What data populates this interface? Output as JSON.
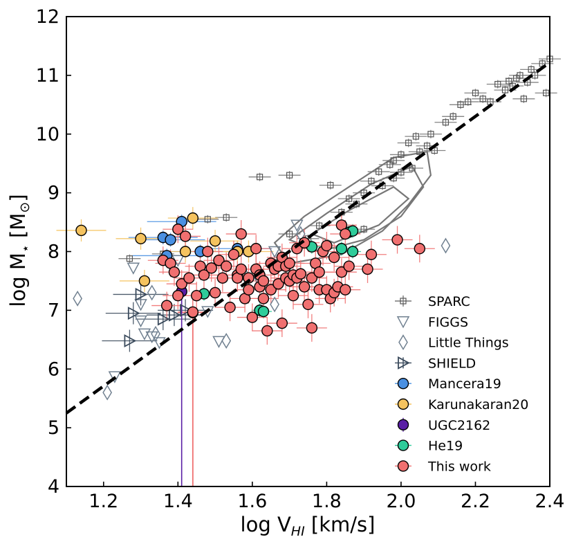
{
  "chart_data": {
    "type": "scatter",
    "title": "",
    "xlabel": "log V",
    "xlabel_sub": "HI",
    "xlabel_unit": " [km/s]",
    "ylabel": "log M",
    "ylabel_sub": "⋆",
    "ylabel_unit": " [M",
    "ylabel_sym": "⊙",
    "ylabel_end": "]",
    "xlim": [
      1.1,
      2.4
    ],
    "ylim": [
      4,
      12
    ],
    "xticks": [
      1.2,
      1.4,
      1.6,
      1.8,
      2.0,
      2.2,
      2.4
    ],
    "xtick_labels": [
      "1.2",
      "1.4",
      "1.6",
      "1.8",
      "2.0",
      "2.2",
      "2.4"
    ],
    "yticks": [
      4,
      5,
      6,
      7,
      8,
      9,
      10,
      11,
      12
    ],
    "ytick_labels": [
      "4",
      "5",
      "6",
      "7",
      "8",
      "9",
      "10",
      "11",
      "12"
    ],
    "fit_line": {
      "x": [
        1.1,
        2.4
      ],
      "y": [
        5.25,
        11.22
      ],
      "style": "dashed",
      "color": "#000000"
    },
    "legend_position": "lower-right",
    "series": [
      {
        "name": "SPARC",
        "marker": "square",
        "color": "#555555",
        "points": [
          [
            1.27,
            7.88
          ],
          [
            1.36,
            7.96
          ],
          [
            1.48,
            8.55
          ],
          [
            1.53,
            8.58
          ],
          [
            1.62,
            9.27
          ],
          [
            1.7,
            9.3
          ],
          [
            1.7,
            8.3
          ],
          [
            1.75,
            8.22
          ],
          [
            1.78,
            8.44
          ],
          [
            1.81,
            9.13
          ],
          [
            1.84,
            8.67
          ],
          [
            1.86,
            8.9
          ],
          [
            1.88,
            8.81
          ],
          [
            1.9,
            9.0
          ],
          [
            1.9,
            8.38
          ],
          [
            1.92,
            9.2
          ],
          [
            1.94,
            9.36
          ],
          [
            1.95,
            9.12
          ],
          [
            1.97,
            9.48
          ],
          [
            1.98,
            9.25
          ],
          [
            1.98,
            9.55
          ],
          [
            2.0,
            9.65
          ],
          [
            2.0,
            9.35
          ],
          [
            2.02,
            9.85
          ],
          [
            2.03,
            9.42
          ],
          [
            2.04,
            9.96
          ],
          [
            2.05,
            9.7
          ],
          [
            2.07,
            9.8
          ],
          [
            2.08,
            10.0
          ],
          [
            2.09,
            9.72
          ],
          [
            2.12,
            10.2
          ],
          [
            2.14,
            10.3
          ],
          [
            2.16,
            10.5
          ],
          [
            2.18,
            10.55
          ],
          [
            2.2,
            10.7
          ],
          [
            2.22,
            10.6
          ],
          [
            2.24,
            10.55
          ],
          [
            2.26,
            10.85
          ],
          [
            2.28,
            10.75
          ],
          [
            2.29,
            10.9
          ],
          [
            2.3,
            10.82
          ],
          [
            2.31,
            10.95
          ],
          [
            2.32,
            11.0
          ],
          [
            2.33,
            10.6
          ],
          [
            2.34,
            10.88
          ],
          [
            2.35,
            11.1
          ],
          [
            2.36,
            11.0
          ],
          [
            2.38,
            11.2
          ],
          [
            2.39,
            10.7
          ],
          [
            2.4,
            11.28
          ]
        ]
      },
      {
        "name": "FIGGS",
        "marker": "triangle-down",
        "color": "#708090",
        "points": [
          [
            1.23,
            5.87
          ],
          [
            1.28,
            7.72
          ],
          [
            1.3,
            6.82
          ],
          [
            1.31,
            6.6
          ],
          [
            1.33,
            6.55
          ],
          [
            1.35,
            6.45
          ],
          [
            1.3,
            7.1
          ],
          [
            1.4,
            7.85
          ],
          [
            1.48,
            6.98
          ],
          [
            1.51,
            6.47
          ],
          [
            1.62,
            7.48
          ],
          [
            1.66,
            8.0
          ],
          [
            1.72,
            8.45
          ]
        ]
      },
      {
        "name": "Little Things",
        "marker": "diamond",
        "color": "#708090",
        "points": [
          [
            1.13,
            7.2
          ],
          [
            1.21,
            5.6
          ],
          [
            1.33,
            7.3
          ],
          [
            1.34,
            6.6
          ],
          [
            1.53,
            6.48
          ],
          [
            1.58,
            7.6
          ],
          [
            1.66,
            7.1
          ],
          [
            1.73,
            8.3
          ],
          [
            2.12,
            8.1
          ]
        ]
      },
      {
        "name": "SHIELD",
        "marker": "triangle-right",
        "color": "#3a4a5c",
        "points": [
          [
            1.27,
            6.48
          ],
          [
            1.28,
            6.95
          ],
          [
            1.3,
            7.27
          ],
          [
            1.36,
            6.85
          ],
          [
            1.39,
            6.92
          ],
          [
            1.42,
            7.0
          ]
        ]
      },
      {
        "name": "Mancera19",
        "marker": "circle",
        "color": "#4a90e2",
        "points": [
          [
            1.36,
            8.24
          ],
          [
            1.37,
            7.93
          ],
          [
            1.41,
            8.51
          ],
          [
            1.56,
            8.05
          ],
          [
            1.46,
            8.0
          ],
          [
            1.38,
            8.2
          ]
        ]
      },
      {
        "name": "Karunakaran20",
        "marker": "circle",
        "color": "#f5c35f",
        "points": [
          [
            1.14,
            8.36
          ],
          [
            1.3,
            8.22
          ],
          [
            1.31,
            7.5
          ],
          [
            1.42,
            8.0
          ],
          [
            1.44,
            8.57
          ],
          [
            1.5,
            8.18
          ],
          [
            1.56,
            8.0
          ],
          [
            1.59,
            8.0
          ]
        ]
      },
      {
        "name": "UGC2162",
        "marker": "circle",
        "color": "#5a1fa5",
        "points": [
          [
            1.41,
            7.32
          ]
        ]
      },
      {
        "name": "He19",
        "marker": "circle",
        "color": "#2ecc9a",
        "points": [
          [
            1.47,
            7.28
          ],
          [
            1.62,
            7.0
          ],
          [
            1.63,
            6.98
          ],
          [
            1.76,
            8.08
          ],
          [
            1.84,
            8.05
          ],
          [
            1.86,
            8.33
          ],
          [
            1.87,
            8.35
          ],
          [
            1.87,
            8.0
          ]
        ]
      },
      {
        "name": "This work",
        "marker": "circle",
        "color": "#f07070",
        "points": [
          [
            1.36,
            7.85
          ],
          [
            1.37,
            7.08
          ],
          [
            1.38,
            7.8
          ],
          [
            1.39,
            7.65
          ],
          [
            1.4,
            7.25
          ],
          [
            1.4,
            8.38
          ],
          [
            1.41,
            7.45
          ],
          [
            1.42,
            8.26
          ],
          [
            1.43,
            7.55
          ],
          [
            1.44,
            6.96
          ],
          [
            1.45,
            7.25
          ],
          [
            1.46,
            7.75
          ],
          [
            1.47,
            7.6
          ],
          [
            1.48,
            8.0
          ],
          [
            1.49,
            7.72
          ],
          [
            1.5,
            7.3
          ],
          [
            1.51,
            7.85
          ],
          [
            1.52,
            7.55
          ],
          [
            1.53,
            7.75
          ],
          [
            1.54,
            7.05
          ],
          [
            1.55,
            7.95
          ],
          [
            1.56,
            7.6
          ],
          [
            1.56,
            7.55
          ],
          [
            1.57,
            8.3
          ],
          [
            1.57,
            7.7
          ],
          [
            1.58,
            7.2
          ],
          [
            1.59,
            7.55
          ],
          [
            1.59,
            7.35
          ],
          [
            1.6,
            6.88
          ],
          [
            1.61,
            7.7
          ],
          [
            1.61,
            8.05
          ],
          [
            1.62,
            7.4
          ],
          [
            1.62,
            7.6
          ],
          [
            1.63,
            7.2
          ],
          [
            1.63,
            7.5
          ],
          [
            1.64,
            6.65
          ],
          [
            1.65,
            7.8
          ],
          [
            1.65,
            7.35
          ],
          [
            1.66,
            7.7
          ],
          [
            1.67,
            7.45
          ],
          [
            1.67,
            7.75
          ],
          [
            1.68,
            7.9
          ],
          [
            1.68,
            6.78
          ],
          [
            1.69,
            7.55
          ],
          [
            1.69,
            7.75
          ],
          [
            1.7,
            7.8
          ],
          [
            1.7,
            7.5
          ],
          [
            1.71,
            7.25
          ],
          [
            1.71,
            7.6
          ],
          [
            1.72,
            8.05
          ],
          [
            1.72,
            7.55
          ],
          [
            1.73,
            7.62
          ],
          [
            1.74,
            7.4
          ],
          [
            1.74,
            8.15
          ],
          [
            1.75,
            7.1
          ],
          [
            1.76,
            6.7
          ],
          [
            1.76,
            7.55
          ],
          [
            1.77,
            7.8
          ],
          [
            1.78,
            7.65
          ],
          [
            1.78,
            7.35
          ],
          [
            1.79,
            8.0
          ],
          [
            1.8,
            7.35
          ],
          [
            1.8,
            8.1
          ],
          [
            1.81,
            7.2
          ],
          [
            1.82,
            7.9
          ],
          [
            1.82,
            7.3
          ],
          [
            1.83,
            7.4
          ],
          [
            1.84,
            8.45
          ],
          [
            1.84,
            7.65
          ],
          [
            1.85,
            8.3
          ],
          [
            1.85,
            7.35
          ],
          [
            1.86,
            7.75
          ],
          [
            1.91,
            7.7
          ],
          [
            1.92,
            7.95
          ],
          [
            1.99,
            8.2
          ],
          [
            2.05,
            8.05
          ],
          [
            1.44,
            6.97
          ]
        ]
      }
    ]
  }
}
